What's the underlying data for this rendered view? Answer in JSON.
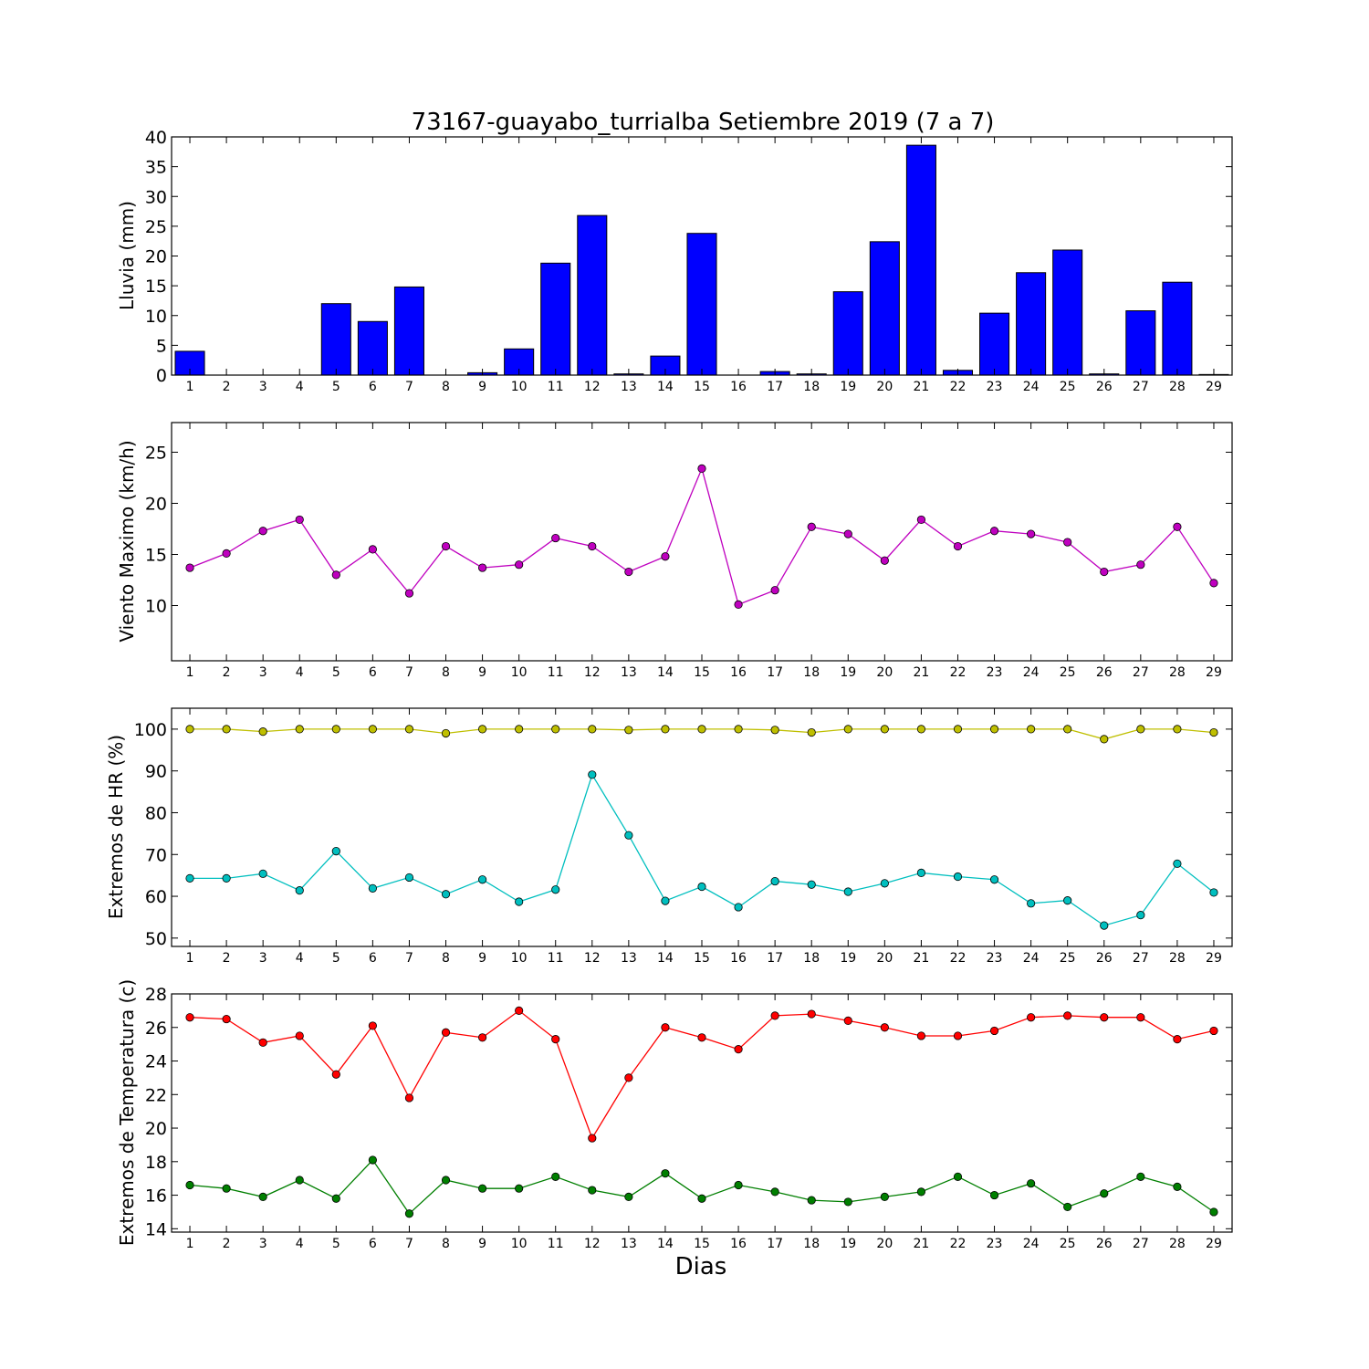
{
  "chart_data": [
    {
      "type": "bar",
      "title": "73167-guayabo_turrialba Setiembre 2019  (7 a 7)",
      "ylabel": "Lluvia (mm)",
      "xlabel": "",
      "categories": [
        "1",
        "2",
        "3",
        "4",
        "5",
        "6",
        "7",
        "8",
        "9",
        "10",
        "11",
        "12",
        "13",
        "14",
        "15",
        "16",
        "17",
        "18",
        "19",
        "20",
        "21",
        "22",
        "23",
        "24",
        "25",
        "26",
        "27",
        "28",
        "29"
      ],
      "values": [
        4.0,
        0.0,
        0.0,
        0.0,
        12.0,
        9.0,
        14.8,
        0.0,
        0.4,
        4.4,
        18.8,
        26.8,
        0.2,
        3.2,
        23.8,
        0.0,
        0.6,
        0.2,
        14.0,
        22.4,
        38.6,
        0.8,
        10.4,
        17.2,
        21.0,
        0.2,
        10.8,
        15.6,
        0.1
      ],
      "ylim": [
        0,
        40
      ],
      "yticks": [
        0,
        5,
        10,
        15,
        20,
        25,
        30,
        35,
        40
      ],
      "color": "#0000ff"
    },
    {
      "type": "line",
      "title": "",
      "ylabel": "Viento Maximo (km/h)",
      "xlabel": "",
      "x": [
        1,
        2,
        3,
        4,
        5,
        6,
        7,
        8,
        9,
        10,
        11,
        12,
        13,
        14,
        15,
        16,
        17,
        18,
        19,
        20,
        21,
        22,
        23,
        24,
        25,
        26,
        27,
        28,
        29
      ],
      "series": [
        {
          "values": [
            13.7,
            15.1,
            17.3,
            18.4,
            13.0,
            15.5,
            11.2,
            15.8,
            13.7,
            14.0,
            16.6,
            15.8,
            13.3,
            14.8,
            23.4,
            10.1,
            11.5,
            17.7,
            17.0,
            14.4,
            18.4,
            15.8,
            17.3,
            17.0,
            16.2,
            13.3,
            14.0,
            17.7,
            12.2
          ],
          "color": "#bf00bf"
        }
      ],
      "ylim": [
        4.6,
        27.9
      ],
      "yticks": [
        10,
        15,
        20,
        25
      ]
    },
    {
      "type": "line",
      "title": "",
      "ylabel": "Extremos de HR (%)",
      "xlabel": "",
      "x": [
        1,
        2,
        3,
        4,
        5,
        6,
        7,
        8,
        9,
        10,
        11,
        12,
        13,
        14,
        15,
        16,
        17,
        18,
        19,
        20,
        21,
        22,
        23,
        24,
        25,
        26,
        27,
        28,
        29
      ],
      "series": [
        {
          "values": [
            100,
            100,
            99.4,
            100,
            100,
            100,
            100,
            99.0,
            100,
            100,
            100,
            100,
            99.8,
            100,
            100,
            100,
            99.8,
            99.2,
            100,
            100,
            100,
            100,
            100,
            100,
            100,
            97.6,
            100,
            100,
            99.2
          ],
          "color": "#bfbf00"
        },
        {
          "values": [
            64.3,
            64.3,
            65.4,
            61.4,
            70.8,
            61.9,
            64.5,
            60.5,
            64.0,
            58.7,
            61.6,
            89.1,
            74.6,
            58.9,
            62.3,
            57.4,
            63.6,
            62.8,
            61.1,
            63.1,
            65.6,
            64.7,
            64.0,
            58.3,
            59.0,
            53.0,
            55.5,
            67.8,
            60.9
          ],
          "color": "#00bfbf"
        }
      ],
      "ylim": [
        48,
        105
      ],
      "yticks": [
        50,
        60,
        70,
        80,
        90,
        100
      ]
    },
    {
      "type": "line",
      "title": "",
      "ylabel": "Extremos de Temperatura (c)",
      "xlabel": "Dias",
      "x": [
        1,
        2,
        3,
        4,
        5,
        6,
        7,
        8,
        9,
        10,
        11,
        12,
        13,
        14,
        15,
        16,
        17,
        18,
        19,
        20,
        21,
        22,
        23,
        24,
        25,
        26,
        27,
        28,
        29
      ],
      "series": [
        {
          "values": [
            26.6,
            26.5,
            25.1,
            25.5,
            23.2,
            26.1,
            21.8,
            25.7,
            25.4,
            27.0,
            25.3,
            19.4,
            23.0,
            26.0,
            25.4,
            24.7,
            26.7,
            26.8,
            26.4,
            26.0,
            25.5,
            25.5,
            25.8,
            26.6,
            26.7,
            26.6,
            26.6,
            25.3,
            25.8
          ],
          "color": "#ff0000"
        },
        {
          "values": [
            16.6,
            16.4,
            15.9,
            16.9,
            15.8,
            18.1,
            14.9,
            16.9,
            16.4,
            16.4,
            17.1,
            16.3,
            15.9,
            17.3,
            15.8,
            16.6,
            16.2,
            15.7,
            15.6,
            15.9,
            16.2,
            17.1,
            16.0,
            16.7,
            15.3,
            16.1,
            17.1,
            16.5,
            15.0
          ],
          "color": "#007f00"
        }
      ],
      "ylim": [
        13.8,
        28
      ],
      "yticks": [
        14,
        16,
        18,
        20,
        22,
        24,
        26,
        28
      ]
    }
  ]
}
